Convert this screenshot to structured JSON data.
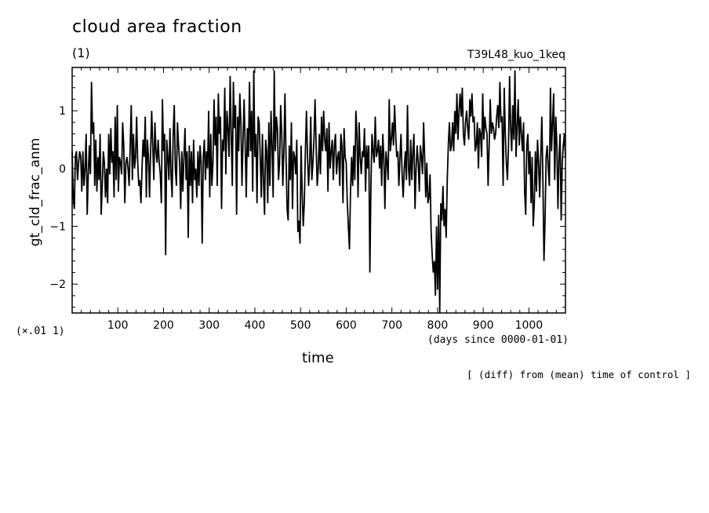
{
  "header": {
    "title": "cloud area fraction",
    "unit": "(1)",
    "run_name": "T39L48_kuo_1keq"
  },
  "footer": {
    "scale_note": "(×.01 1)",
    "note": "[ (diff) from (mean) time of control ]"
  },
  "chart_data": {
    "type": "line",
    "xlabel": "time",
    "x_unit": "(days since 0000-01-01)",
    "ylabel": "gt_cld_frac_anm",
    "xlim": [
      0,
      1080
    ],
    "ylim": [
      -2.5,
      1.75
    ],
    "x_ticks": [
      100,
      200,
      300,
      400,
      500,
      600,
      700,
      800,
      900,
      1000
    ],
    "y_ticks": [
      -2,
      -1,
      0,
      1
    ],
    "x_step": 2,
    "seed_note": "",
    "series": [
      {
        "name": "",
        "color": "#000000",
        "values": [
          0.3,
          -0.5,
          -0.7,
          0.2,
          0.3,
          -0.2,
          0.1,
          0.3,
          0.2,
          -0.4,
          0.3,
          -0.3,
          0.0,
          0.6,
          -0.8,
          -0.1,
          0.4,
          -0.1,
          1.5,
          0.6,
          0.8,
          -0.3,
          0.5,
          -0.4,
          0.2,
          -0.2,
          0.6,
          -0.8,
          -0.3,
          0.3,
          0.1,
          -0.5,
          0.0,
          -0.6,
          0.6,
          -0.1,
          0.7,
          0.1,
          0.3,
          -0.5,
          0.9,
          -0.2,
          1.1,
          -0.4,
          0.2,
          0.1,
          -0.1,
          0.8,
          0.4,
          -0.6,
          0.1,
          0.2,
          0.0,
          -0.3,
          0.4,
          1.1,
          -0.2,
          0.6,
          0.0,
          0.2,
          0.9,
          0.1,
          -0.3,
          -0.2,
          -0.6,
          0.0,
          0.5,
          0.2,
          0.9,
          -0.5,
          0.5,
          0.2,
          -0.5,
          0.3,
          1.0,
          0.4,
          -0.2,
          0.8,
          0.3,
          0.1,
          0.5,
          0.1,
          -0.1,
          -0.6,
          1.2,
          0.3,
          0.6,
          -1.5,
          0.5,
          0.2,
          -0.2,
          0.7,
          -0.1,
          -0.5,
          0.6,
          1.1,
          0.0,
          -0.3,
          0.8,
          0.4,
          0.1,
          -0.7,
          0.3,
          -0.4,
          0.2,
          0.7,
          -0.2,
          0.3,
          -1.2,
          0.4,
          -0.3,
          0.3,
          -0.6,
          0.5,
          -0.2,
          0.0,
          -0.5,
          0.3,
          -0.3,
          0.4,
          0.1,
          -1.3,
          0.2,
          0.5,
          -0.2,
          0.3,
          0.0,
          1.0,
          -0.5,
          0.6,
          -0.3,
          0.1,
          1.2,
          0.4,
          0.9,
          -0.3,
          1.3,
          0.6,
          0.9,
          -0.7,
          0.5,
          0.3,
          1.4,
          -0.1,
          1.0,
          0.7,
          0.2,
          1.6,
          0.6,
          -0.3,
          1.5,
          0.7,
          1.1,
          -0.8,
          0.9,
          0.3,
          1.3,
          0.8,
          -0.3,
          0.5,
          1.2,
          0.4,
          -0.5,
          0.7,
          0.2,
          1.5,
          0.3,
          1.0,
          -0.4,
          1.7,
          0.2,
          0.6,
          -0.6,
          0.9,
          0.8,
          0.2,
          -0.5,
          0.6,
          -0.2,
          -0.8,
          0.5,
          0.3,
          -0.6,
          0.8,
          -0.3,
          1.0,
          0.4,
          -0.5,
          1.7,
          0.3,
          0.9,
          0.7,
          -0.2,
          0.1,
          1.1,
          0.6,
          -0.3,
          0.3,
          1.3,
          0.2,
          -0.7,
          -0.9,
          0.4,
          -0.2,
          0.8,
          -0.7,
          0.3,
          0.2,
          -0.1,
          0.5,
          -1.1,
          -0.9,
          -1.3,
          0.4,
          -0.4,
          -1.0,
          -0.6,
          0.3,
          1.0,
          0.2,
          -0.3,
          0.1,
          0.9,
          -0.2,
          0.1,
          0.5,
          1.2,
          0.4,
          -0.3,
          0.0,
          0.6,
          -0.1,
          0.9,
          0.3,
          1.0,
          0.5,
          0.3,
          0.7,
          -0.4,
          0.8,
          0.0,
          0.3,
          0.5,
          -0.2,
          0.4,
          0.6,
          -0.1,
          0.2,
          0.3,
          -0.3,
          0.6,
          0.4,
          -0.6,
          0.7,
          0.2,
          0.1,
          -0.6,
          -1.0,
          -1.4,
          -0.4,
          0.2,
          -0.3,
          0.4,
          -0.2,
          1.0,
          0.6,
          -0.5,
          0.8,
          0.2,
          -0.1,
          0.3,
          0.2,
          0.7,
          -0.4,
          0.4,
          0.0,
          0.4,
          -1.8,
          -0.3,
          0.6,
          0.3,
          0.1,
          0.9,
          0.2,
          0.3,
          0.5,
          0.0,
          0.4,
          -0.3,
          0.6,
          0.2,
          -0.7,
          0.3,
          0.1,
          -0.2,
          1.2,
          0.3,
          0.5,
          0.8,
          0.4,
          1.1,
          0.6,
          0.2,
          0.3,
          -0.3,
          0.2,
          0.6,
          -0.1,
          -0.5,
          0.0,
          0.3,
          -0.2,
          1.1,
          0.0,
          -0.3,
          0.5,
          -0.2,
          0.3,
          0.6,
          -0.7,
          0.0,
          0.4,
          0.1,
          -0.4,
          0.4,
          0.2,
          -0.1,
          0.8,
          0.2,
          -0.5,
          0.1,
          -0.6,
          -0.5,
          -0.1,
          -1.1,
          -1.5,
          -1.8,
          -1.6,
          -2.2,
          -1.0,
          -2.1,
          -0.8,
          -2.5,
          -0.6,
          -0.9,
          -0.3,
          -1.0,
          -0.7,
          -1.2,
          -0.2,
          0.4,
          0.8,
          0.3,
          0.4,
          0.8,
          0.3,
          1.0,
          0.6,
          1.3,
          0.5,
          1.0,
          1.3,
          0.9,
          1.4,
          0.6,
          0.4,
          0.8,
          1.0,
          0.7,
          0.5,
          1.2,
          0.9,
          1.3,
          0.8,
          0.9,
          0.3,
          0.4,
          0.8,
          0.0,
          0.7,
          0.6,
          0.2,
          1.3,
          0.5,
          0.9,
          0.7,
          0.6,
          -0.3,
          0.4,
          1.2,
          0.6,
          0.8,
          0.7,
          0.5,
          0.6,
          0.9,
          1.1,
          0.7,
          1.5,
          0.8,
          0.9,
          -0.3,
          1.4,
          0.6,
          0.1,
          -0.2,
          0.4,
          1.6,
          0.7,
          0.3,
          1.1,
          0.5,
          1.7,
          0.2,
          0.7,
          1.2,
          0.4,
          0.9,
          0.6,
          0.3,
          0.8,
          -0.4,
          -0.8,
          0.4,
          0.6,
          -0.1,
          0.3,
          -0.6,
          0.2,
          -1.0,
          -0.6,
          0.3,
          -0.4,
          0.5,
          0.1,
          -0.5,
          0.2,
          0.9,
          -0.2,
          -1.6,
          -0.9,
          0.2,
          0.4,
          0.0,
          -0.3,
          1.4,
          0.3,
          0.8,
          1.3,
          -0.2,
          0.9,
          0.4,
          -0.7,
          0.2,
          0.6,
          -0.9,
          0.1,
          0.4,
          0.6,
          0.2
        ]
      }
    ]
  }
}
